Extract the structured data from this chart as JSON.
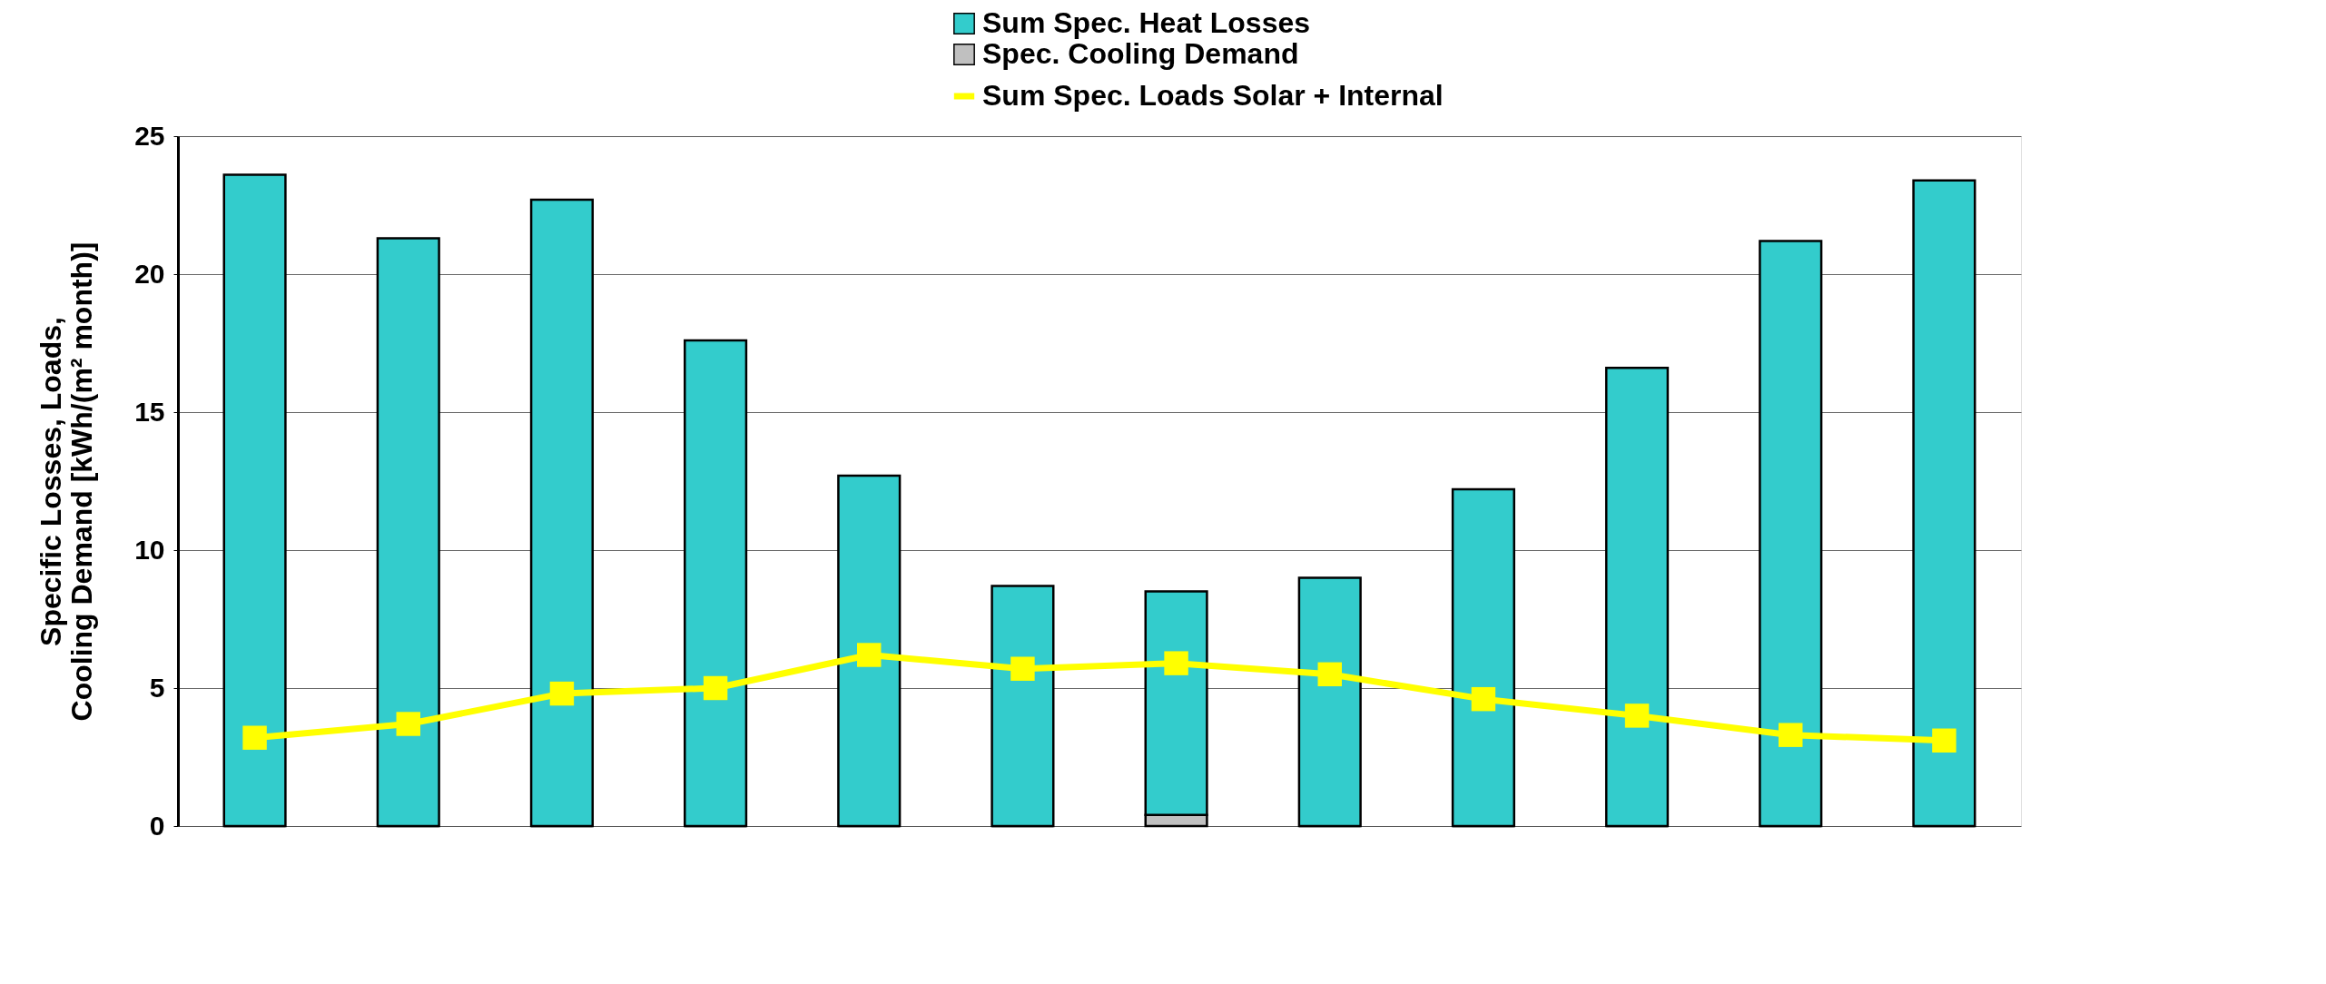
{
  "chart_data": {
    "type": "bar",
    "stacked": true,
    "ylabel": "Specific Losses, Loads,\nCooling Demand [kWh/(m² month)]",
    "categories": [
      null,
      null,
      null,
      null,
      null,
      null,
      null,
      null,
      null,
      null,
      null,
      null
    ],
    "series": [
      {
        "name": "Spec. Cooling Demand",
        "color": "#c0c0c0",
        "values": [
          0,
          0,
          0,
          0,
          0,
          0,
          0.4,
          0,
          0,
          0,
          0,
          0
        ]
      },
      {
        "name": "Sum Spec. Heat Losses",
        "color": "#33cccc",
        "values": [
          23.6,
          21.3,
          22.7,
          17.6,
          12.7,
          8.7,
          8.1,
          9.0,
          12.2,
          16.6,
          21.2,
          23.4
        ]
      },
      {
        "name": "Sum Spec. Loads Solar + Internal",
        "type": "line",
        "color": "#ffff00",
        "marker": "square",
        "values": [
          3.2,
          3.7,
          4.8,
          5.0,
          6.2,
          5.7,
          5.9,
          5.5,
          4.6,
          4.0,
          3.3,
          3.1
        ]
      }
    ],
    "ylim": [
      0,
      25
    ],
    "yticks": [
      0,
      5,
      10,
      15,
      20,
      25
    ],
    "grid": "y",
    "legend": "top right"
  }
}
